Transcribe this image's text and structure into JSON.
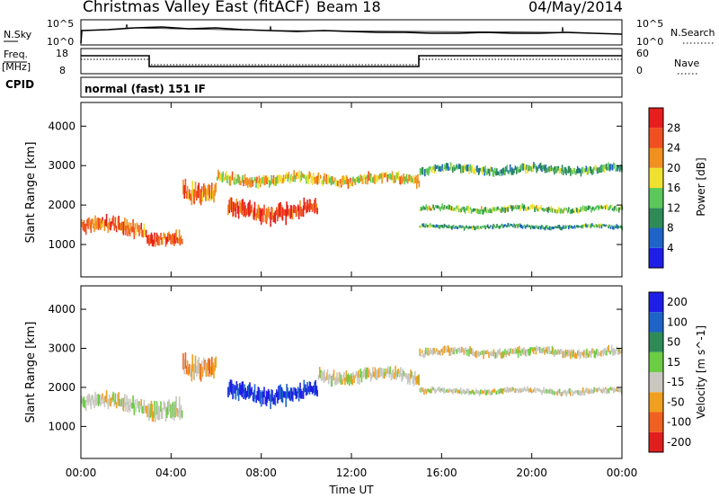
{
  "header": {
    "title": "Christmas Valley East (fitACF)",
    "beam": "Beam 18",
    "date": "04/May/2014"
  },
  "top_panels": {
    "nsky_label": "N.Sky",
    "nsearch_label": "N.Search",
    "sky_ticks": [
      "10^5",
      "10^0"
    ],
    "search_ticks": [
      "10^5",
      "10^0"
    ],
    "freq_label_1": "Freq.",
    "freq_label_2": "[MHz]",
    "freq_ticks": [
      "18",
      "8"
    ],
    "nave_label": "Nave",
    "nave_ticks": [
      "60",
      "0"
    ],
    "cpid_label": "CPID",
    "cpid_value": "normal (fast) 151 IF"
  },
  "x_axis": {
    "label": "Time UT",
    "ticks": [
      "00:00",
      "04:00",
      "08:00",
      "12:00",
      "16:00",
      "20:00",
      "00:00"
    ]
  },
  "chart_data": [
    {
      "type": "heatmap",
      "name": "power",
      "ylabel": "Slant Range [km]",
      "yticks": [
        1000,
        2000,
        3000,
        4000
      ],
      "ylim": [
        180,
        4600
      ],
      "xlim_hours": [
        0,
        24
      ],
      "colorbar_label": "Power [dB]",
      "colorbar_ticks": [
        4,
        8,
        12,
        16,
        20,
        24,
        28
      ],
      "colorbar_colors": [
        "#1e1ee6",
        "#1e64c8",
        "#2e8b57",
        "#5cc85c",
        "#f0e030",
        "#f09020",
        "#f05020",
        "#e61e1e"
      ],
      "approx_bands": [
        {
          "x": [
            0.0,
            2.9
          ],
          "center": 1450,
          "width": 350,
          "level": 0.8
        },
        {
          "x": [
            2.9,
            4.5
          ],
          "center": 1100,
          "width": 300,
          "level": 0.85
        },
        {
          "x": [
            4.5,
            6.0
          ],
          "center": 2400,
          "width": 450,
          "level": 0.75
        },
        {
          "x": [
            6.5,
            10.5
          ],
          "center": 1850,
          "width": 400,
          "level": 0.9
        },
        {
          "x": [
            6.0,
            15.0
          ],
          "center": 2650,
          "width": 250,
          "level": 0.6
        },
        {
          "x": [
            15.0,
            24.0
          ],
          "center": 2900,
          "width": 200,
          "level": 0.35
        },
        {
          "x": [
            15.0,
            24.0
          ],
          "center": 1900,
          "width": 140,
          "level": 0.45
        },
        {
          "x": [
            15.0,
            24.0
          ],
          "center": 1450,
          "width": 100,
          "level": 0.3
        }
      ]
    },
    {
      "type": "heatmap",
      "name": "velocity",
      "ylabel": "Slant Range [km]",
      "yticks": [
        1000,
        2000,
        3000,
        4000
      ],
      "ylim": [
        180,
        4600
      ],
      "xlim_hours": [
        0,
        24
      ],
      "colorbar_label": "Velocity [m s^-1]",
      "colorbar_ticks": [
        200,
        100,
        50,
        15,
        -15,
        -50,
        -100,
        -200
      ],
      "colorbar_colors": [
        "#1e1ee6",
        "#1e64c8",
        "#2e8b57",
        "#6ccc44",
        "#c8c8c0",
        "#f0a020",
        "#f06020",
        "#e01e1e"
      ],
      "approx_bands": [
        {
          "x": [
            0.0,
            2.9
          ],
          "center": 1600,
          "width": 350,
          "level": "gray"
        },
        {
          "x": [
            2.9,
            4.5
          ],
          "center": 1350,
          "width": 450,
          "level": "gray"
        },
        {
          "x": [
            4.5,
            6.0
          ],
          "center": 2600,
          "width": 500,
          "level": "orange"
        },
        {
          "x": [
            6.5,
            10.5
          ],
          "center": 1850,
          "width": 400,
          "level": "blue"
        },
        {
          "x": [
            10.5,
            15.0
          ],
          "center": 2300,
          "width": 300,
          "level": "gray"
        },
        {
          "x": [
            15.0,
            24.0
          ],
          "center": 2900,
          "width": 200,
          "level": "gray"
        },
        {
          "x": [
            15.0,
            24.0
          ],
          "center": 1900,
          "width": 140,
          "level": "gray"
        }
      ]
    }
  ]
}
